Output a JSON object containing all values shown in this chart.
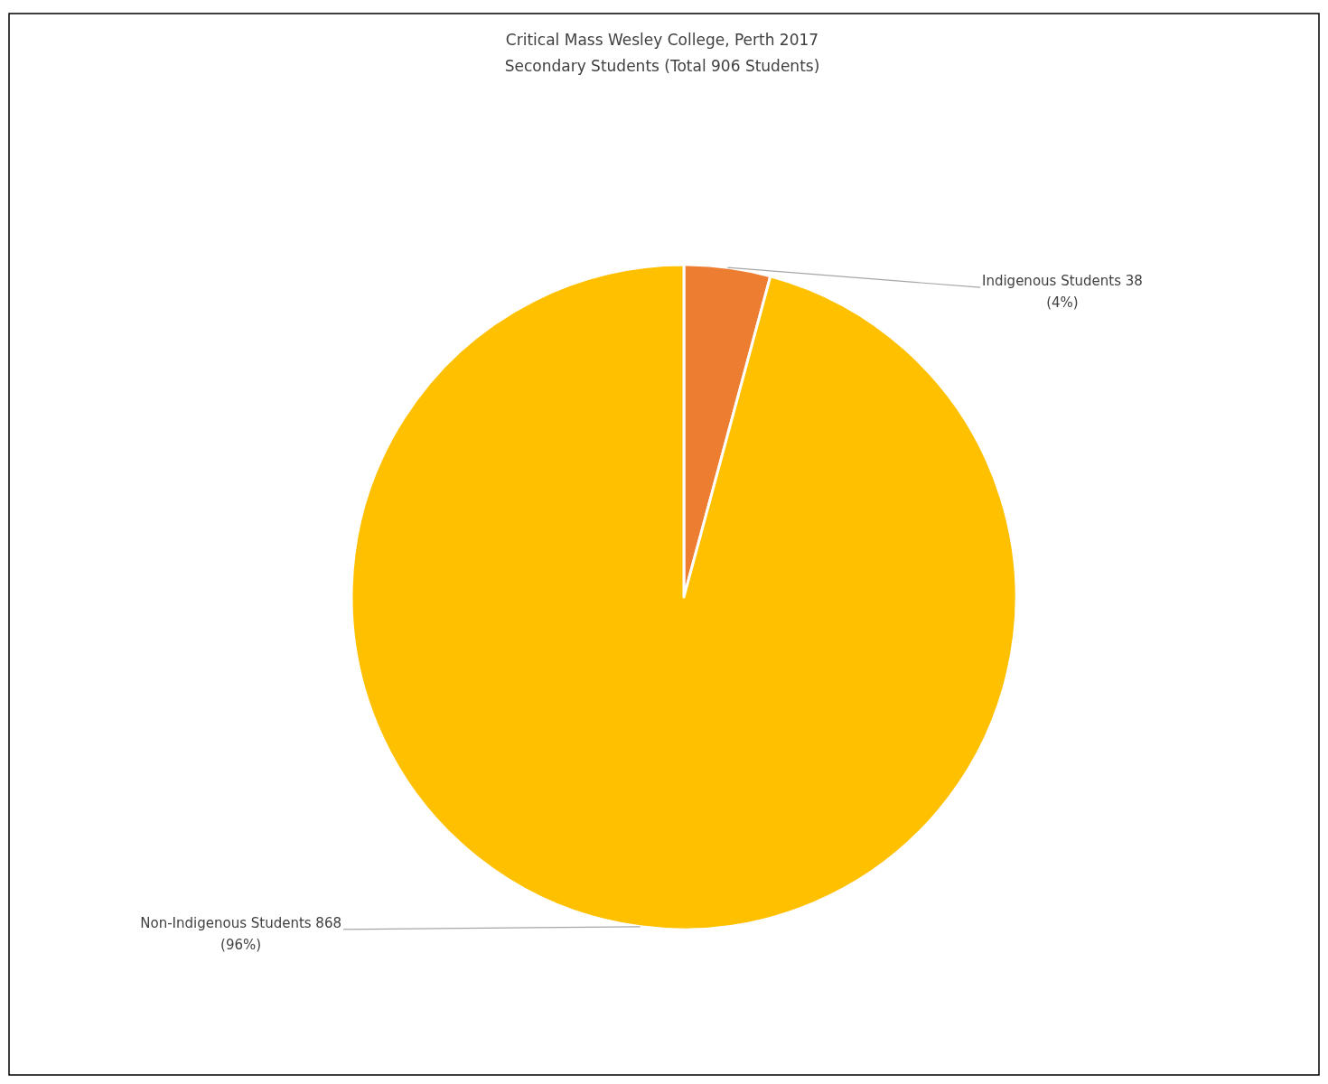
{
  "chart_data": {
    "type": "pie",
    "title": "Critical Mass Wesley College, Perth 2017",
    "subtitle": "Secondary Students (Total 906 Students)",
    "categories": [
      "Indigenous Students",
      "Non-Indigenous Students"
    ],
    "values": [
      38,
      868
    ],
    "colors": [
      "#ed7d31",
      "#ffc000"
    ],
    "value_labels": [
      "38\n(4%)",
      "868\n(96%)"
    ]
  }
}
